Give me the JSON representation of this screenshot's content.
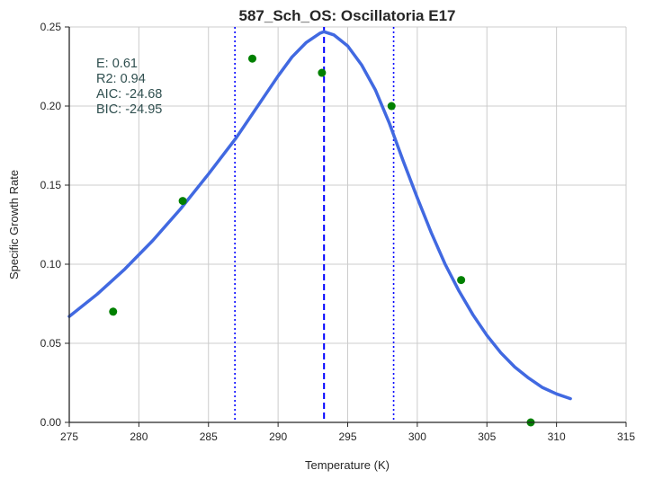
{
  "chart_data": {
    "type": "scatter",
    "title": "587_Sch_OS: Oscillatoria E17",
    "xlabel": "Temperature (K)",
    "ylabel": "Specific Growth Rate",
    "xlim": [
      275,
      315
    ],
    "ylim": [
      0.0,
      0.25
    ],
    "xticks": [
      275,
      280,
      285,
      290,
      295,
      300,
      305,
      310,
      315
    ],
    "yticks": [
      0.0,
      0.05,
      0.1,
      0.15,
      0.2,
      0.25
    ],
    "xtick_labels": [
      "275",
      "280",
      "285",
      "290",
      "295",
      "300",
      "305",
      "310",
      "315"
    ],
    "ytick_labels": [
      "0.00",
      "0.05",
      "0.10",
      "0.15",
      "0.20",
      "0.25"
    ],
    "grid": true,
    "points": {
      "color": "#008000",
      "x": [
        278.15,
        283.15,
        288.15,
        293.15,
        298.15,
        303.15,
        308.15
      ],
      "y": [
        0.07,
        0.14,
        0.23,
        0.221,
        0.2,
        0.09,
        0.0
      ]
    },
    "fit_curve": {
      "color": "#4169e1",
      "x": [
        275.0,
        277.0,
        279.0,
        281.0,
        283.0,
        285.0,
        287.0,
        289.0,
        290.0,
        291.0,
        292.0,
        293.0,
        293.3,
        294.0,
        295.0,
        296.0,
        297.0,
        298.0,
        299.0,
        300.0,
        301.0,
        302.0,
        303.0,
        304.0,
        305.0,
        306.0,
        307.0,
        308.0,
        309.0,
        310.0,
        311.0
      ],
      "y": [
        0.067,
        0.081,
        0.097,
        0.115,
        0.135,
        0.157,
        0.18,
        0.206,
        0.219,
        0.231,
        0.24,
        0.246,
        0.247,
        0.245,
        0.238,
        0.226,
        0.21,
        0.189,
        0.165,
        0.142,
        0.12,
        0.1,
        0.083,
        0.068,
        0.055,
        0.044,
        0.035,
        0.028,
        0.022,
        0.018,
        0.015
      ]
    },
    "vlines": [
      {
        "x": 293.3,
        "style": "dashed",
        "color": "#0000ff"
      },
      {
        "x": 286.9,
        "style": "dotted",
        "color": "#0000ff"
      },
      {
        "x": 298.3,
        "style": "dotted",
        "color": "#0000ff"
      }
    ],
    "annotation": {
      "lines": [
        "E:  0.61",
        "R2:  0.94",
        "AIC: -24.68",
        "BIC: -24.95"
      ],
      "color": "#2f4f4f"
    }
  }
}
